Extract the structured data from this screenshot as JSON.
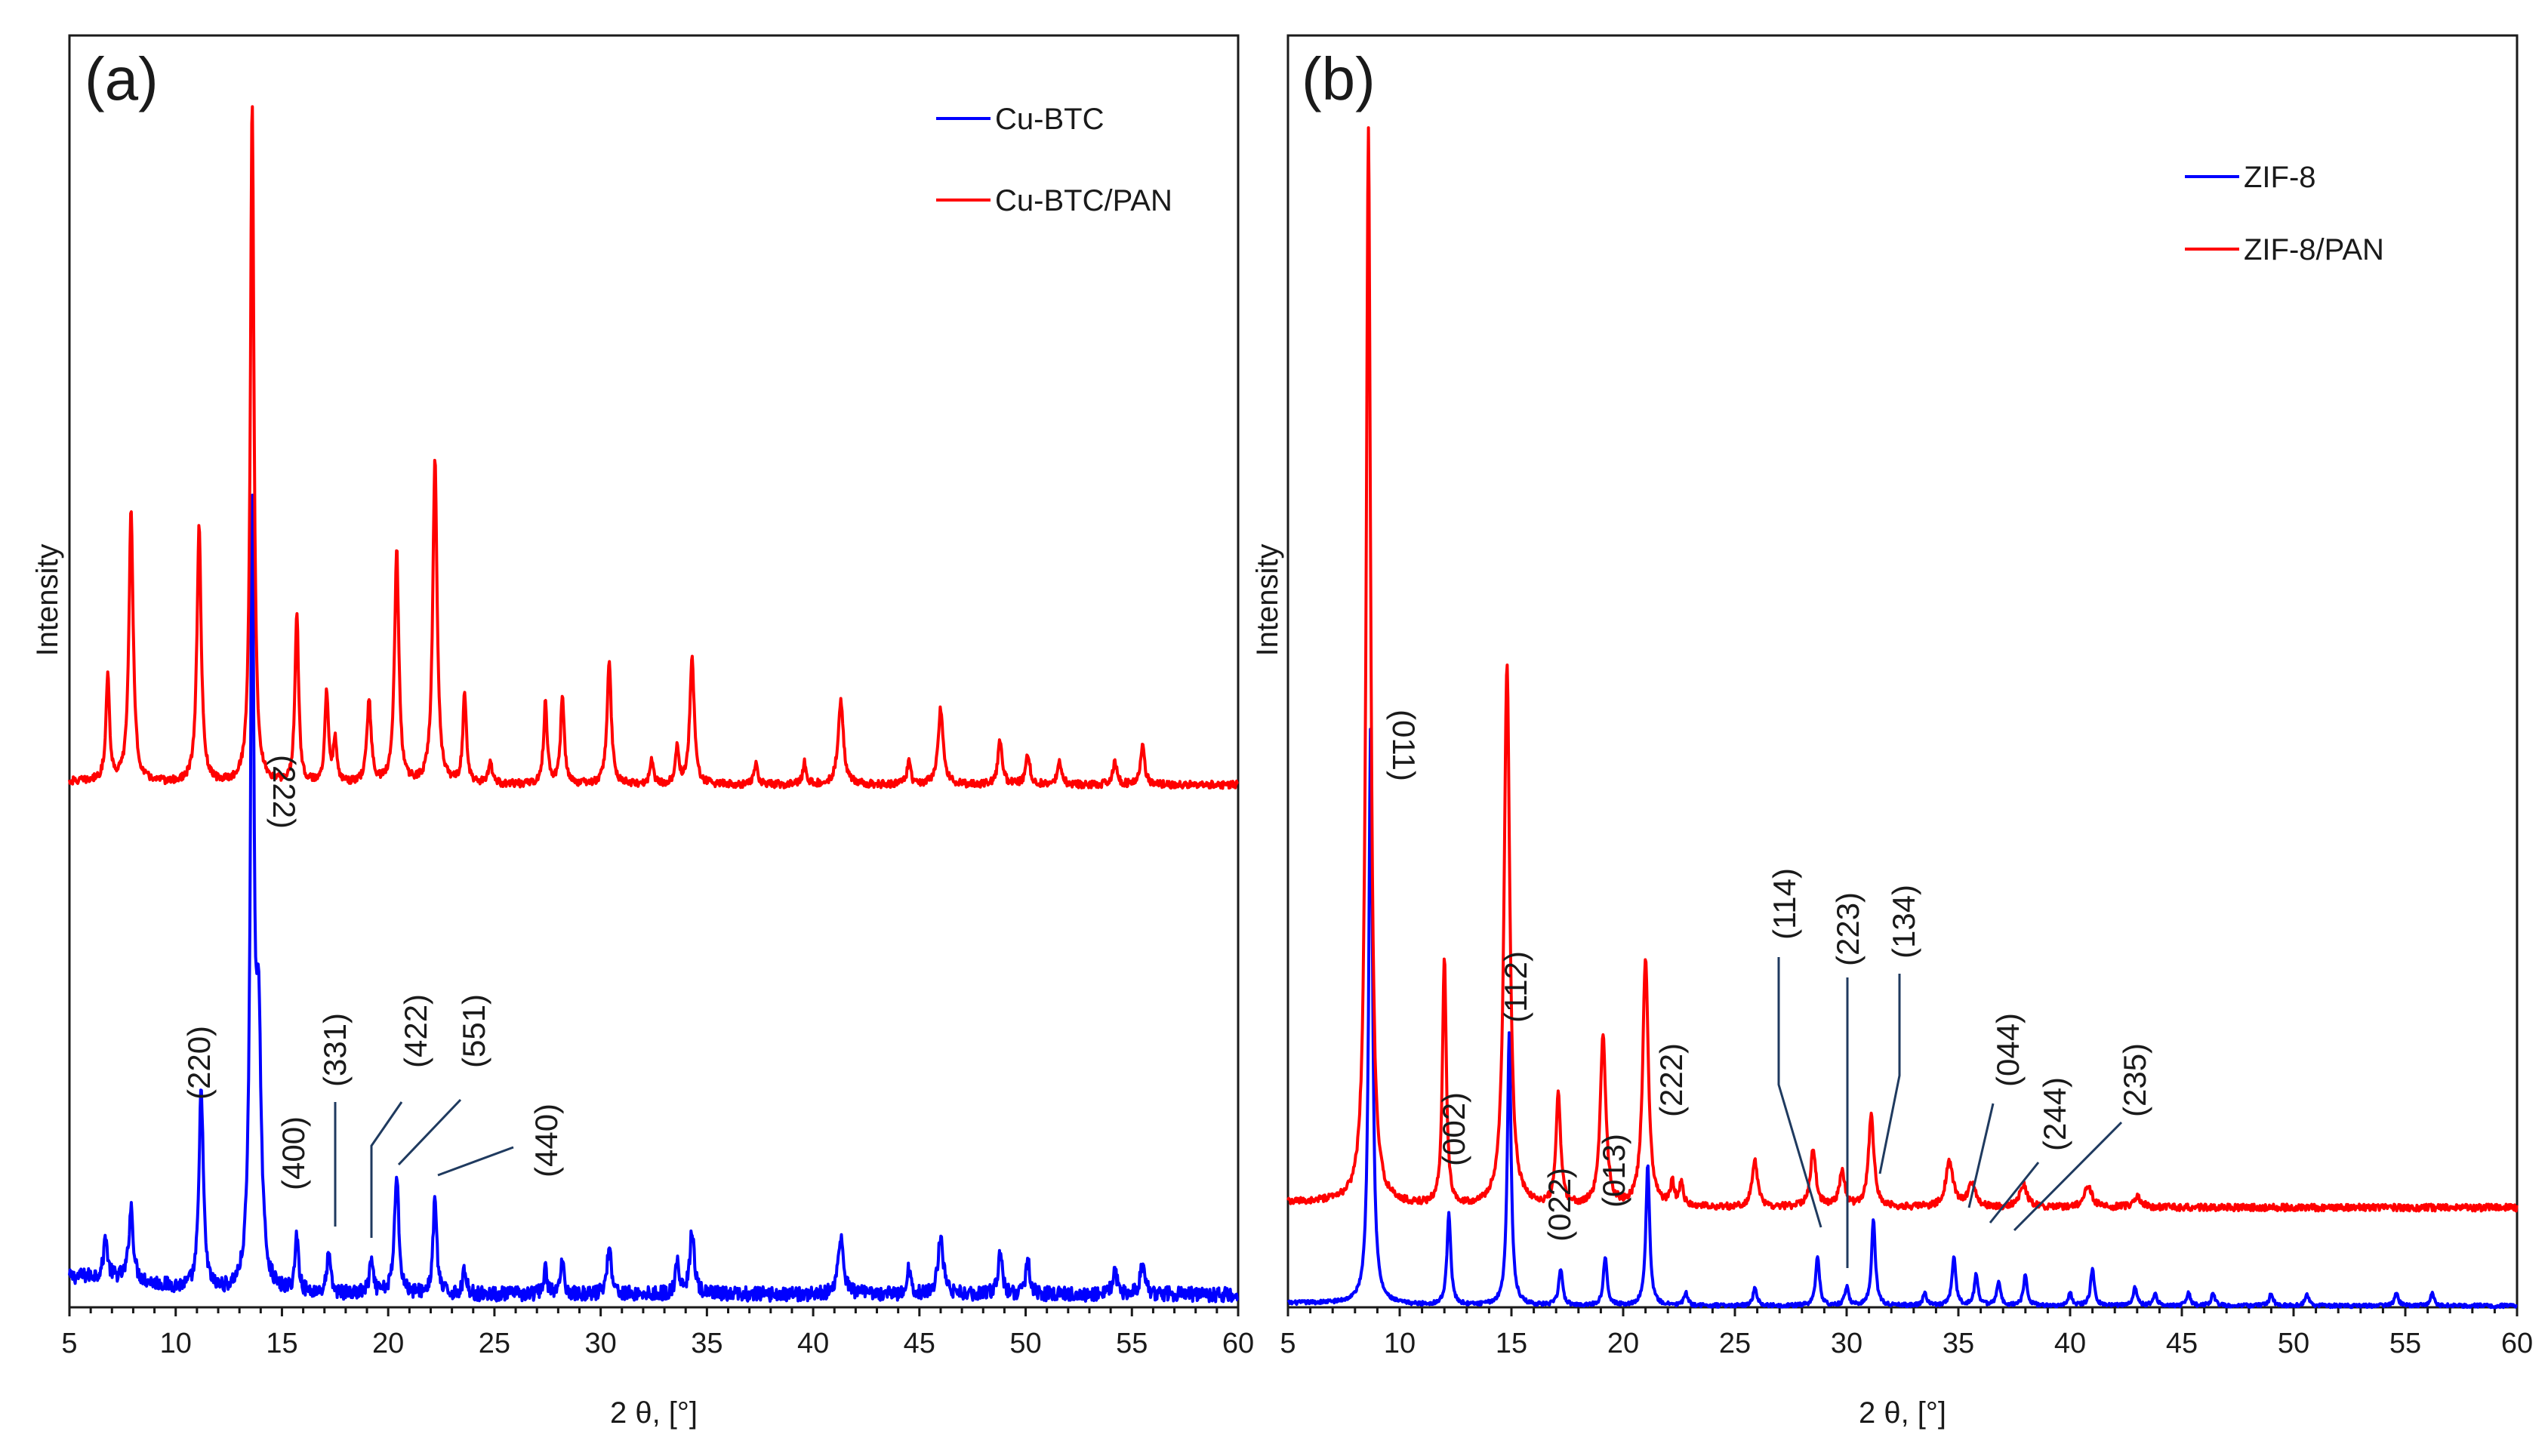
{
  "figure": {
    "panels": [
      "a",
      "b"
    ]
  },
  "chart_data": [
    {
      "type": "line",
      "panel_label": "(a)",
      "xlabel": "2 θ, [°]",
      "ylabel": "Intensity",
      "xlim": [
        5,
        60
      ],
      "xticks": [
        5,
        10,
        15,
        20,
        25,
        30,
        35,
        40,
        45,
        50,
        55,
        60
      ],
      "ylim": [
        0,
        100
      ],
      "series": [
        {
          "name": "Cu-BTC",
          "color": "#0000ff",
          "baseline": 6,
          "noise": 0.9,
          "peaks": [
            [
              6.7,
              5,
              0.1
            ],
            [
              7.9,
              9,
              0.12
            ],
            [
              11.2,
              25,
              0.12
            ],
            [
              13.6,
              93,
              0.1
            ],
            [
              13.9,
              30,
              0.15
            ],
            [
              15.7,
              7,
              0.1
            ],
            [
              17.2,
              5,
              0.1
            ],
            [
              19.2,
              4,
              0.1
            ],
            [
              20.4,
              15,
              0.12
            ],
            [
              22.2,
              12,
              0.1
            ],
            [
              23.6,
              3,
              0.1
            ],
            [
              27.4,
              3,
              0.1
            ],
            [
              28.2,
              4,
              0.1
            ],
            [
              30.4,
              6,
              0.12
            ],
            [
              33.6,
              4,
              0.1
            ],
            [
              34.3,
              8,
              0.12
            ],
            [
              41.3,
              7,
              0.15
            ],
            [
              44.5,
              3,
              0.1
            ],
            [
              46.0,
              7,
              0.15
            ],
            [
              48.8,
              5,
              0.12
            ],
            [
              50.1,
              4,
              0.12
            ],
            [
              54.2,
              3,
              0.12
            ],
            [
              55.5,
              4,
              0.12
            ]
          ]
        },
        {
          "name": "Cu-BTC/PAN",
          "color": "#ff0000",
          "baseline": 41,
          "noise": 0.5,
          "peaks": [
            [
              6.8,
              14,
              0.1
            ],
            [
              7.9,
              36,
              0.12
            ],
            [
              11.1,
              34,
              0.12
            ],
            [
              13.6,
              91,
              0.1
            ],
            [
              15.7,
              23,
              0.1
            ],
            [
              17.1,
              12,
              0.1
            ],
            [
              17.5,
              6,
              0.1
            ],
            [
              19.1,
              11,
              0.12
            ],
            [
              20.4,
              31,
              0.12
            ],
            [
              22.2,
              43,
              0.12
            ],
            [
              23.6,
              12,
              0.1
            ],
            [
              24.8,
              3,
              0.1
            ],
            [
              27.4,
              11,
              0.1
            ],
            [
              28.2,
              12,
              0.1
            ],
            [
              30.4,
              16,
              0.12
            ],
            [
              32.4,
              3,
              0.1
            ],
            [
              33.6,
              5,
              0.1
            ],
            [
              34.3,
              17,
              0.12
            ],
            [
              37.3,
              3,
              0.1
            ],
            [
              39.6,
              3,
              0.1
            ],
            [
              41.3,
              11,
              0.15
            ],
            [
              44.5,
              3,
              0.1
            ],
            [
              46.0,
              10,
              0.15
            ],
            [
              48.8,
              6,
              0.12
            ],
            [
              50.1,
              4,
              0.12
            ],
            [
              51.6,
              3,
              0.12
            ],
            [
              54.2,
              3,
              0.12
            ],
            [
              55.5,
              5,
              0.12
            ]
          ]
        }
      ],
      "legend": [
        "Cu-BTC",
        "Cu-BTC/PAN"
      ],
      "annotations": [
        {
          "label": "(220)",
          "x": 11.2
        },
        {
          "label": "(222)",
          "x": 13.6
        },
        {
          "label": "(400)",
          "x": 15.7
        },
        {
          "label": "(331)",
          "x": 17.4
        },
        {
          "label": "(422)",
          "x": 19.2
        },
        {
          "label": "(551)",
          "x": 20.4
        },
        {
          "label": "(440)",
          "x": 22.2
        }
      ]
    },
    {
      "type": "line",
      "panel_label": "(b)",
      "xlabel": "2 θ, [°]",
      "ylabel": "Intensity",
      "xlim": [
        5,
        60
      ],
      "xticks": [
        5,
        10,
        15,
        20,
        25,
        30,
        35,
        40,
        45,
        50,
        55,
        60
      ],
      "ylim": [
        0,
        100
      ],
      "series": [
        {
          "name": "ZIF-8",
          "color": "#0000ff",
          "baseline": 2.5,
          "noise": 0.3,
          "peaks": [
            [
              8.7,
              94,
              0.1
            ],
            [
              12.2,
              15,
              0.1
            ],
            [
              14.9,
              44,
              0.1
            ],
            [
              17.2,
              6,
              0.1
            ],
            [
              19.2,
              8,
              0.1
            ],
            [
              21.1,
              23,
              0.1
            ],
            [
              22.8,
              2,
              0.1
            ],
            [
              25.9,
              3,
              0.1
            ],
            [
              28.7,
              8,
              0.1
            ],
            [
              30.0,
              3,
              0.1
            ],
            [
              31.2,
              14,
              0.1
            ],
            [
              33.5,
              2,
              0.1
            ],
            [
              34.8,
              8,
              0.1
            ],
            [
              35.8,
              5,
              0.1
            ],
            [
              36.8,
              4,
              0.1
            ],
            [
              38.0,
              5,
              0.1
            ],
            [
              40.0,
              2,
              0.1
            ],
            [
              41.0,
              6,
              0.1
            ],
            [
              42.9,
              3,
              0.1
            ],
            [
              43.8,
              2,
              0.1
            ],
            [
              45.3,
              2,
              0.1
            ],
            [
              46.4,
              2,
              0.1
            ],
            [
              49.0,
              2,
              0.1
            ],
            [
              50.6,
              2,
              0.1
            ],
            [
              54.6,
              2,
              0.1
            ],
            [
              56.2,
              2,
              0.1
            ]
          ]
        },
        {
          "name": "ZIF-8/PAN",
          "color": "#ff0000",
          "baseline": 42,
          "noise": 0.3,
          "peaks": [
            [
              8.6,
              95,
              0.12
            ],
            [
              12.0,
              22,
              0.1
            ],
            [
              14.8,
              48,
              0.15
            ],
            [
              17.1,
              10,
              0.12
            ],
            [
              19.1,
              15,
              0.15
            ],
            [
              21.0,
              22,
              0.15
            ],
            [
              22.2,
              2,
              0.1
            ],
            [
              22.6,
              2,
              0.1
            ],
            [
              25.9,
              4,
              0.15
            ],
            [
              28.5,
              5,
              0.15
            ],
            [
              29.8,
              3,
              0.15
            ],
            [
              31.1,
              8,
              0.15
            ],
            [
              34.6,
              4,
              0.2
            ],
            [
              35.6,
              2,
              0.2
            ],
            [
              37.9,
              2,
              0.2
            ],
            [
              40.8,
              2,
              0.2
            ],
            [
              43.0,
              1,
              0.2
            ]
          ]
        }
      ],
      "legend": [
        "ZIF-8",
        "ZIF-8/PAN"
      ],
      "annotations": [
        {
          "label": "(011)",
          "x": 8.7
        },
        {
          "label": "(002)",
          "x": 12.2
        },
        {
          "label": "(112)",
          "x": 14.9
        },
        {
          "label": "(022)",
          "x": 17.2
        },
        {
          "label": "(013)",
          "x": 19.2
        },
        {
          "label": "(222)",
          "x": 21.1
        },
        {
          "label": "(114)",
          "x": 28.7
        },
        {
          "label": "(223)",
          "x": 30.0
        },
        {
          "label": "(134)",
          "x": 31.2
        },
        {
          "label": "(044)",
          "x": 34.8
        },
        {
          "label": "(244)",
          "x": 35.8
        },
        {
          "label": "(235)",
          "x": 36.8
        }
      ]
    }
  ]
}
